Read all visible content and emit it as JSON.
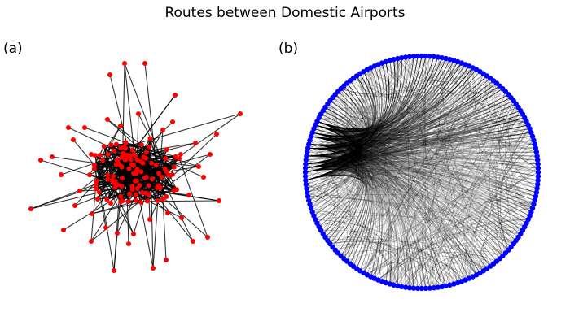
{
  "title": "Routes between Domestic Airports",
  "panels": [
    {
      "label": "(a)",
      "layout": "force-directed",
      "node_color": "#ff0000",
      "edge_color": "#000000"
    },
    {
      "label": "(b)",
      "layout": "circular",
      "node_color": "#0000ff",
      "edge_color": "#000000"
    }
  ]
}
